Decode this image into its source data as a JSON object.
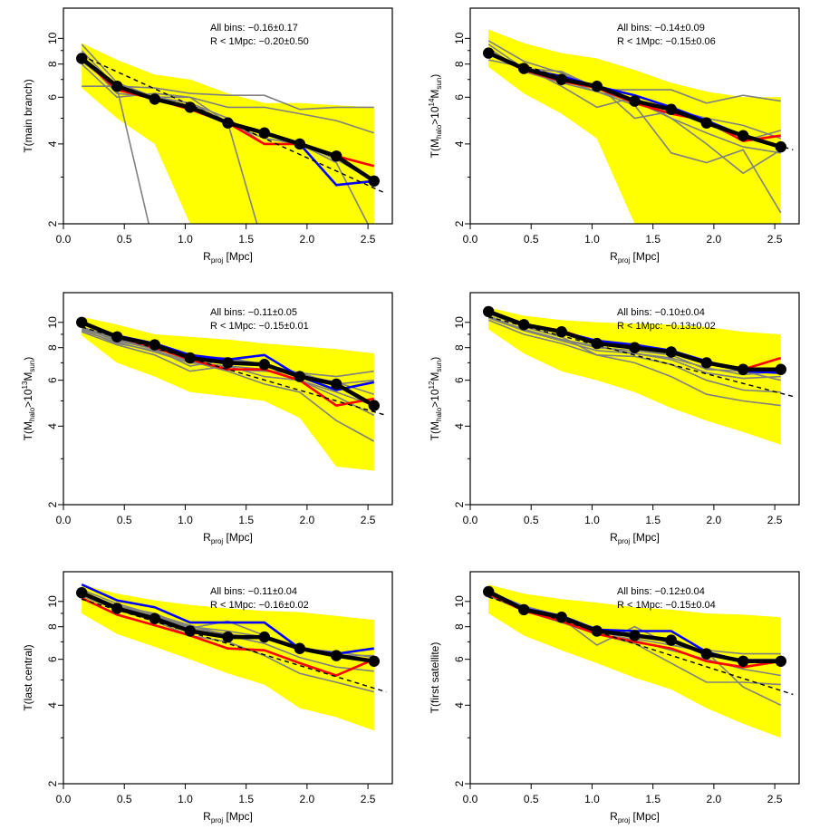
{
  "colors": {
    "band": "#ffff00",
    "gray": "#808080",
    "red": "#ff0000",
    "blue": "#0000ff",
    "black": "#000000"
  },
  "chart_data": [
    {
      "type": "line",
      "ylabel": {
        "pre": "T(main branch)"
      },
      "xlabel": {
        "main": "R",
        "sub": "proj",
        "post": " [Mpc]"
      },
      "xlim": [
        0,
        2.7
      ],
      "ylim": [
        2,
        13
      ],
      "yscale": "log",
      "xticks": [
        "0.0",
        "0.5",
        "1.0",
        "1.5",
        "2.0",
        "2.5"
      ],
      "yticks": [
        "2",
        "4",
        "6",
        "8",
        "10"
      ],
      "annot_lines": [
        "All bins:    −0.16±0.17",
        "R < 1Mpc: −0.20±0.50"
      ],
      "x": [
        0.15,
        0.44,
        0.75,
        1.04,
        1.35,
        1.65,
        1.94,
        2.24,
        2.55
      ],
      "band_upper": [
        9.6,
        8.3,
        7.3,
        7.0,
        6.2,
        5.7,
        5.7,
        5.6,
        5.5
      ],
      "band_lower": [
        6.5,
        5.0,
        4.0,
        2.0,
        2.0,
        1.6,
        1.6,
        1.6,
        1.6
      ],
      "gray_lines": [
        [
          9.5,
          6.8,
          6.0,
          5.7,
          5.0,
          4.0,
          4.0,
          3.5,
          2.9
        ],
        [
          6.6,
          6.6,
          6.5,
          6.2,
          6.1,
          6.1,
          5.4,
          5.5,
          5.5
        ],
        [
          8.0,
          6.0,
          6.2,
          6.0,
          4.8,
          1.6,
          1.6,
          1.6,
          1.6
        ],
        [
          9.0,
          6.5,
          6.0,
          5.7,
          4.8,
          4.2,
          4.0,
          3.4,
          1.8
        ],
        [
          8.5,
          6.2,
          6.0,
          6.0,
          5.5,
          5.5,
          5.2,
          4.9,
          4.4
        ],
        [
          8.2,
          6.5,
          1.6,
          1.6,
          1.6,
          1.6,
          1.6,
          1.6,
          1.6
        ]
      ],
      "red": [
        8.4,
        6.4,
        5.9,
        5.4,
        4.8,
        4.0,
        4.0,
        3.6,
        3.3
      ],
      "blue": [
        8.4,
        6.6,
        5.9,
        5.5,
        4.8,
        4.4,
        4.0,
        2.8,
        2.9
      ],
      "black": [
        8.4,
        6.6,
        5.9,
        5.5,
        4.8,
        4.4,
        4.0,
        3.6,
        2.9
      ],
      "fit_start": 8.6,
      "fit_end": 2.6
    },
    {
      "type": "line",
      "ylabel": {
        "pre": "T(M",
        "sub": "halo",
        "mid": ">10",
        "sup": "14",
        "post": "M",
        "sub2": "sun",
        "end": ")"
      },
      "xlabel": {
        "main": "R",
        "sub": "proj",
        "post": " [Mpc]"
      },
      "xlim": [
        0,
        2.7
      ],
      "ylim": [
        2,
        13
      ],
      "yscale": "log",
      "xticks": [
        "0.0",
        "0.5",
        "1.0",
        "1.5",
        "2.0",
        "2.5"
      ],
      "yticks": [
        "2",
        "4",
        "6",
        "8",
        "10"
      ],
      "annot_lines": [
        "All bins:    −0.14±0.09",
        "R < 1Mpc: −0.15±0.06"
      ],
      "x": [
        0.15,
        0.44,
        0.75,
        1.04,
        1.35,
        1.65,
        1.94,
        2.24,
        2.55
      ],
      "band_upper": [
        10.8,
        9.6,
        8.8,
        8.4,
        7.6,
        6.8,
        6.3,
        6.0,
        6.0
      ],
      "band_lower": [
        7.8,
        6.2,
        5.2,
        4.2,
        2.0,
        1.6,
        1.6,
        1.6,
        1.6
      ],
      "gray_lines": [
        [
          9.8,
          8.2,
          7.4,
          6.4,
          6.4,
          6.4,
          5.7,
          6.1,
          5.8
        ],
        [
          8.3,
          7.8,
          6.6,
          5.5,
          6.0,
          5.0,
          4.0,
          3.1,
          3.8
        ],
        [
          9.0,
          7.6,
          7.0,
          6.7,
          5.0,
          5.3,
          4.8,
          4.1,
          4.5
        ],
        [
          9.2,
          7.5,
          6.8,
          6.3,
          5.6,
          3.7,
          3.4,
          3.8,
          2.2
        ],
        [
          8.8,
          7.7,
          7.0,
          6.3,
          5.8,
          5.4,
          5.0,
          4.7,
          4.2
        ],
        [
          9.5,
          7.7,
          7.5,
          6.5,
          5.8,
          5.0,
          4.4,
          3.9,
          3.7
        ]
      ],
      "red": [
        8.8,
        7.6,
        6.9,
        6.5,
        5.7,
        5.2,
        4.9,
        4.1,
        4.3
      ],
      "blue": [
        8.8,
        7.7,
        7.2,
        6.6,
        6.1,
        5.5,
        4.9,
        4.3,
        3.9
      ],
      "black": [
        8.8,
        7.7,
        7.0,
        6.6,
        5.8,
        5.4,
        4.8,
        4.3,
        3.9
      ],
      "fit_start": 8.7,
      "fit_end": 3.8
    },
    {
      "type": "line",
      "ylabel": {
        "pre": "T(M",
        "sub": "halo",
        "mid": ">10",
        "sup": "13",
        "post": "M",
        "sub2": "sun",
        "end": ")"
      },
      "xlabel": {
        "main": "R",
        "sub": "proj",
        "post": " [Mpc]"
      },
      "xlim": [
        0,
        2.7
      ],
      "ylim": [
        2,
        13
      ],
      "yscale": "log",
      "xticks": [
        "0.0",
        "0.5",
        "1.0",
        "1.5",
        "2.0",
        "2.5"
      ],
      "yticks": [
        "2",
        "4",
        "6",
        "8",
        "10"
      ],
      "annot_lines": [
        "All bins:    −0.11±0.05",
        "R < 1Mpc: −0.15±0.01"
      ],
      "x": [
        0.15,
        0.44,
        0.75,
        1.04,
        1.35,
        1.65,
        1.94,
        2.24,
        2.55
      ],
      "band_upper": [
        10.5,
        9.8,
        9.0,
        8.8,
        8.6,
        8.3,
        8.1,
        7.9,
        7.6
      ],
      "band_lower": [
        8.9,
        7.0,
        6.2,
        5.4,
        5.2,
        5.0,
        4.3,
        2.8,
        2.7
      ],
      "gray_lines": [
        [
          9.5,
          8.5,
          7.9,
          6.8,
          7.2,
          6.9,
          6.4,
          6.2,
          6.5
        ],
        [
          9.2,
          8.2,
          7.5,
          6.5,
          6.8,
          6.6,
          6.0,
          5.4,
          4.8
        ],
        [
          9.4,
          8.3,
          7.8,
          7.1,
          6.5,
          5.8,
          5.4,
          4.2,
          3.5
        ],
        [
          9.6,
          8.7,
          8.0,
          7.2,
          6.6,
          6.5,
          6.4,
          5.8,
          6.0
        ],
        [
          9.3,
          8.4,
          7.7,
          7.0,
          6.8,
          6.2,
          6.0,
          5.2,
          4.4
        ],
        [
          9.5,
          8.6,
          7.9,
          7.4,
          7.3,
          6.9,
          6.3,
          5.9,
          5.3
        ]
      ],
      "red": [
        10.0,
        8.8,
        8.0,
        7.2,
        6.6,
        6.6,
        6.0,
        4.8,
        5.1
      ],
      "blue": [
        10.0,
        8.9,
        8.3,
        7.5,
        7.2,
        7.5,
        6.2,
        5.5,
        5.9
      ],
      "black": [
        10.0,
        8.8,
        8.2,
        7.3,
        7.0,
        6.9,
        6.2,
        5.8,
        4.8
      ],
      "fit_start": 9.6,
      "fit_end": 4.4
    },
    {
      "type": "line",
      "ylabel": {
        "pre": "T(M",
        "sub": "halo",
        "mid": ">10",
        "sup": "12",
        "post": "M",
        "sub2": "sun",
        "end": ")"
      },
      "xlabel": {
        "main": "R",
        "sub": "proj",
        "post": " [Mpc]"
      },
      "xlim": [
        0,
        2.7
      ],
      "ylim": [
        2,
        13
      ],
      "yscale": "log",
      "xticks": [
        "0.0",
        "0.5",
        "1.0",
        "1.5",
        "2.0",
        "2.5"
      ],
      "yticks": [
        "2",
        "4",
        "6",
        "8",
        "10"
      ],
      "annot_lines": [
        "All bins:    −0.10±0.04",
        "R < 1Mpc: −0.13±0.02"
      ],
      "x": [
        0.15,
        0.44,
        0.75,
        1.04,
        1.35,
        1.65,
        1.94,
        2.24,
        2.55
      ],
      "band_upper": [
        11.4,
        10.6,
        10.2,
        10.0,
        9.9,
        9.8,
        9.6,
        9.2,
        9.0
      ],
      "band_lower": [
        9.4,
        7.6,
        6.5,
        6.0,
        5.4,
        4.7,
        4.2,
        3.8,
        3.4
      ],
      "gray_lines": [
        [
          10.6,
          9.3,
          8.5,
          7.8,
          7.6,
          7.3,
          6.7,
          6.3,
          6.5
        ],
        [
          10.2,
          9.0,
          8.3,
          7.5,
          7.0,
          6.2,
          5.3,
          5.0,
          4.8
        ],
        [
          10.4,
          9.3,
          8.6,
          8.0,
          7.8,
          7.5,
          6.6,
          6.5,
          6.0
        ],
        [
          10.8,
          9.6,
          8.8,
          7.5,
          7.4,
          6.9,
          6.0,
          5.5,
          5.4
        ],
        [
          10.5,
          9.4,
          8.6,
          8.1,
          7.6,
          7.2,
          6.4,
          6.1,
          6.2
        ],
        [
          10.9,
          9.7,
          9.2,
          8.5,
          8.1,
          7.7,
          7.0,
          6.7,
          6.6
        ]
      ],
      "red": [
        11.0,
        9.8,
        9.3,
        8.4,
        8.2,
        7.7,
        7.0,
        6.6,
        7.3
      ],
      "blue": [
        11.0,
        9.8,
        9.2,
        8.5,
        8.2,
        7.8,
        7.1,
        6.5,
        6.4
      ],
      "black": [
        11.0,
        9.8,
        9.2,
        8.3,
        8.0,
        7.7,
        7.0,
        6.6,
        6.6
      ],
      "fit_start": 10.5,
      "fit_end": 5.2
    },
    {
      "type": "line",
      "ylabel": {
        "pre": "T(last central)"
      },
      "xlabel": {
        "main": "R",
        "sub": "proj",
        "post": " [Mpc]"
      },
      "xlim": [
        0,
        2.7
      ],
      "ylim": [
        2,
        13
      ],
      "yscale": "log",
      "xticks": [
        "0.0",
        "0.5",
        "1.0",
        "1.5",
        "2.0",
        "2.5"
      ],
      "yticks": [
        "2",
        "4",
        "6",
        "8",
        "10"
      ],
      "annot_lines": [
        "All bins:    −0.11±0.04",
        "R < 1Mpc: −0.16±0.02"
      ],
      "x": [
        0.15,
        0.44,
        0.75,
        1.04,
        1.35,
        1.65,
        1.94,
        2.24,
        2.55
      ],
      "band_upper": [
        11.6,
        10.7,
        10.1,
        9.7,
        9.4,
        9.2,
        9.1,
        8.8,
        8.5
      ],
      "band_lower": [
        9.0,
        7.5,
        6.7,
        6.0,
        5.3,
        4.8,
        3.9,
        3.6,
        3.2
      ],
      "gray_lines": [
        [
          10.9,
          9.6,
          9.0,
          7.9,
          8.4,
          7.4,
          6.6,
          6.4,
          6.1
        ],
        [
          10.5,
          9.3,
          8.4,
          7.4,
          7.0,
          6.2,
          5.3,
          4.9,
          4.5
        ],
        [
          10.7,
          9.5,
          8.7,
          7.9,
          7.5,
          7.2,
          6.6,
          6.2,
          6.2
        ],
        [
          11.1,
          9.8,
          8.9,
          8.1,
          7.4,
          6.9,
          6.1,
          5.6,
          5.4
        ],
        [
          10.8,
          9.6,
          8.8,
          8.0,
          7.7,
          7.3,
          6.7,
          6.3,
          5.9
        ]
      ],
      "red": [
        10.3,
        8.9,
        8.1,
        7.4,
        6.6,
        6.5,
        5.8,
        5.2,
        6.0
      ],
      "blue": [
        11.6,
        10.1,
        9.5,
        8.3,
        8.3,
        8.3,
        6.6,
        6.3,
        6.6
      ],
      "black": [
        10.8,
        9.4,
        8.6,
        7.7,
        7.3,
        7.3,
        6.6,
        6.2,
        5.9
      ],
      "fit_start": 10.2,
      "fit_end": 4.5
    },
    {
      "type": "line",
      "ylabel": {
        "pre": "T(first satellite)"
      },
      "xlabel": {
        "main": "R",
        "sub": "proj",
        "post": " [Mpc]"
      },
      "xlim": [
        0,
        2.7
      ],
      "ylim": [
        2,
        13
      ],
      "yscale": "log",
      "xticks": [
        "0.0",
        "0.5",
        "1.0",
        "1.5",
        "2.0",
        "2.5"
      ],
      "yticks": [
        "2",
        "4",
        "6",
        "8",
        "10"
      ],
      "annot_lines": [
        "All bins:    −0.12±0.04",
        "R < 1Mpc: −0.15±0.04"
      ],
      "x": [
        0.15,
        0.44,
        0.75,
        1.04,
        1.35,
        1.65,
        1.94,
        2.24,
        2.55
      ],
      "band_upper": [
        11.6,
        10.7,
        10.2,
        9.9,
        9.5,
        9.3,
        9.0,
        8.9,
        8.7
      ],
      "band_lower": [
        9.0,
        7.4,
        6.5,
        5.8,
        5.1,
        4.6,
        3.9,
        3.4,
        3.0
      ],
      "gray_lines": [
        [
          10.8,
          9.4,
          8.6,
          6.8,
          8.0,
          6.8,
          6.4,
          4.7,
          4.0
        ],
        [
          10.5,
          9.2,
          8.3,
          7.5,
          6.9,
          5.8,
          4.9,
          4.9,
          4.8
        ],
        [
          10.7,
          9.4,
          8.6,
          7.9,
          7.2,
          6.8,
          6.5,
          6.3,
          6.3
        ],
        [
          10.9,
          9.6,
          8.8,
          7.7,
          7.1,
          6.5,
          6.0,
          5.5,
          5.2
        ],
        [
          10.6,
          9.3,
          8.5,
          7.8,
          7.4,
          7.0,
          6.3,
          6.0,
          6.0
        ]
      ],
      "red": [
        10.7,
        9.2,
        8.4,
        7.5,
        7.0,
        6.6,
        5.9,
        5.6,
        5.9
      ],
      "blue": [
        11.0,
        9.4,
        8.8,
        7.8,
        7.7,
        7.7,
        6.4,
        5.9,
        5.9
      ],
      "black": [
        10.9,
        9.3,
        8.7,
        7.7,
        7.4,
        7.1,
        6.3,
        5.9,
        5.9
      ],
      "fit_start": 10.4,
      "fit_end": 4.4
    }
  ]
}
